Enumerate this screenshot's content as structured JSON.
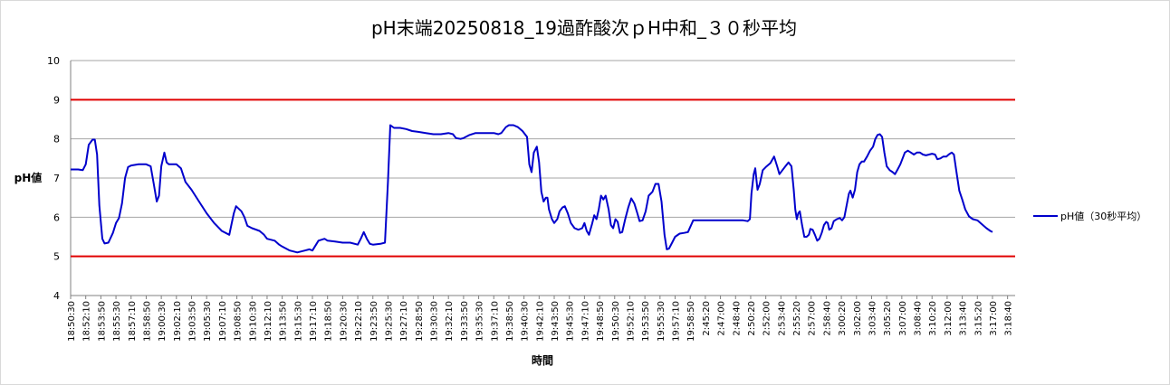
{
  "chart_data": {
    "type": "line",
    "title": "pH末端20250818_19過酢酸次ｐH中和_３０秒平均",
    "xlabel": "時間",
    "ylabel": "pH値",
    "ylim": [
      4,
      10
    ],
    "yticks": [
      4,
      5,
      6,
      7,
      8,
      9,
      10
    ],
    "grid": true,
    "legend_position": "right",
    "threshold_lines": [
      {
        "value": 9,
        "color": "#e00000"
      },
      {
        "value": 5,
        "color": "#e00000"
      }
    ],
    "categories": [
      "18:50:30",
      "18:52:10",
      "18:53:50",
      "18:55:30",
      "18:57:10",
      "18:58:50",
      "19:00:30",
      "19:02:10",
      "19:03:50",
      "19:05:30",
      "19:07:10",
      "19:08:50",
      "19:10:30",
      "19:12:10",
      "19:13:50",
      "19:15:30",
      "19:17:10",
      "19:18:50",
      "19:20:30",
      "19:22:10",
      "19:23:50",
      "19:25:30",
      "19:27:10",
      "19:28:50",
      "19:30:30",
      "19:32:10",
      "19:33:50",
      "19:35:30",
      "19:37:10",
      "19:38:50",
      "19:40:30",
      "19:42:10",
      "19:43:50",
      "19:45:30",
      "19:47:10",
      "19:48:50",
      "19:50:30",
      "19:52:10",
      "19:53:50",
      "19:55:30",
      "19:57:10",
      "19:58:50",
      "2:45:20",
      "2:47:00",
      "2:48:40",
      "2:50:20",
      "2:52:00",
      "2:53:40",
      "2:55:20",
      "2:57:00",
      "2:58:40",
      "3:00:20",
      "3:02:00",
      "3:03:40",
      "3:05:20",
      "3:07:00",
      "3:08:40",
      "3:10:20",
      "3:12:00",
      "3:13:40",
      "3:15:20",
      "3:17:00",
      "3:18:40"
    ],
    "series": [
      {
        "name": "pH値（30秒平均）",
        "color": "#0000cc",
        "points": [
          [
            0,
            7.22
          ],
          [
            0.5,
            7.22
          ],
          [
            0.8,
            7.2
          ],
          [
            1.0,
            7.35
          ],
          [
            1.2,
            7.85
          ],
          [
            1.45,
            7.98
          ],
          [
            1.6,
            7.98
          ],
          [
            1.75,
            7.6
          ],
          [
            1.9,
            6.3
          ],
          [
            2.1,
            5.45
          ],
          [
            2.25,
            5.33
          ],
          [
            2.5,
            5.35
          ],
          [
            2.8,
            5.6
          ],
          [
            3.0,
            5.85
          ],
          [
            3.2,
            5.98
          ],
          [
            3.4,
            6.35
          ],
          [
            3.6,
            7.0
          ],
          [
            3.8,
            7.28
          ],
          [
            4.0,
            7.32
          ],
          [
            4.5,
            7.35
          ],
          [
            5.0,
            7.35
          ],
          [
            5.3,
            7.3
          ],
          [
            5.5,
            6.85
          ],
          [
            5.7,
            6.4
          ],
          [
            5.85,
            6.55
          ],
          [
            6.0,
            7.3
          ],
          [
            6.2,
            7.65
          ],
          [
            6.35,
            7.4
          ],
          [
            6.5,
            7.35
          ],
          [
            7.0,
            7.35
          ],
          [
            7.3,
            7.25
          ],
          [
            7.6,
            6.9
          ],
          [
            8.0,
            6.7
          ],
          [
            8.5,
            6.4
          ],
          [
            9.0,
            6.1
          ],
          [
            9.5,
            5.85
          ],
          [
            10.0,
            5.65
          ],
          [
            10.5,
            5.55
          ],
          [
            10.8,
            6.1
          ],
          [
            10.95,
            6.28
          ],
          [
            11.3,
            6.15
          ],
          [
            11.5,
            6.0
          ],
          [
            11.7,
            5.78
          ],
          [
            12.0,
            5.72
          ],
          [
            12.5,
            5.65
          ],
          [
            12.8,
            5.55
          ],
          [
            13.0,
            5.45
          ],
          [
            13.5,
            5.4
          ],
          [
            13.8,
            5.3
          ],
          [
            14.0,
            5.25
          ],
          [
            14.5,
            5.15
          ],
          [
            15.0,
            5.1
          ],
          [
            15.5,
            5.15
          ],
          [
            15.8,
            5.18
          ],
          [
            16.0,
            5.15
          ],
          [
            16.4,
            5.4
          ],
          [
            16.8,
            5.45
          ],
          [
            17.0,
            5.4
          ],
          [
            17.5,
            5.38
          ],
          [
            18.0,
            5.35
          ],
          [
            18.5,
            5.35
          ],
          [
            19.0,
            5.3
          ],
          [
            19.2,
            5.45
          ],
          [
            19.4,
            5.62
          ],
          [
            19.6,
            5.45
          ],
          [
            19.8,
            5.32
          ],
          [
            20.0,
            5.3
          ],
          [
            20.5,
            5.32
          ],
          [
            20.8,
            5.35
          ],
          [
            21.0,
            6.9
          ],
          [
            21.15,
            8.35
          ],
          [
            21.4,
            8.28
          ],
          [
            21.8,
            8.28
          ],
          [
            22.2,
            8.25
          ],
          [
            22.6,
            8.2
          ],
          [
            23.0,
            8.18
          ],
          [
            23.5,
            8.15
          ],
          [
            24.0,
            8.12
          ],
          [
            24.5,
            8.12
          ],
          [
            25.0,
            8.15
          ],
          [
            25.3,
            8.12
          ],
          [
            25.5,
            8.02
          ],
          [
            25.8,
            8.0
          ],
          [
            26.0,
            8.02
          ],
          [
            26.4,
            8.1
          ],
          [
            26.8,
            8.15
          ],
          [
            27.5,
            8.15
          ],
          [
            28.0,
            8.15
          ],
          [
            28.3,
            8.12
          ],
          [
            28.5,
            8.15
          ],
          [
            28.8,
            8.3
          ],
          [
            29.0,
            8.35
          ],
          [
            29.3,
            8.35
          ],
          [
            29.6,
            8.3
          ],
          [
            29.9,
            8.2
          ],
          [
            30.2,
            8.05
          ],
          [
            30.35,
            7.35
          ],
          [
            30.5,
            7.15
          ],
          [
            30.65,
            7.65
          ],
          [
            30.85,
            7.8
          ],
          [
            31.0,
            7.4
          ],
          [
            31.15,
            6.65
          ],
          [
            31.3,
            6.4
          ],
          [
            31.45,
            6.5
          ],
          [
            31.55,
            6.5
          ],
          [
            31.65,
            6.2
          ],
          [
            31.85,
            5.95
          ],
          [
            32.0,
            5.85
          ],
          [
            32.2,
            5.95
          ],
          [
            32.35,
            6.15
          ],
          [
            32.55,
            6.25
          ],
          [
            32.7,
            6.28
          ],
          [
            32.9,
            6.1
          ],
          [
            33.1,
            5.85
          ],
          [
            33.35,
            5.72
          ],
          [
            33.6,
            5.68
          ],
          [
            33.85,
            5.72
          ],
          [
            34.0,
            5.85
          ],
          [
            34.15,
            5.65
          ],
          [
            34.3,
            5.55
          ],
          [
            34.5,
            5.82
          ],
          [
            34.65,
            6.05
          ],
          [
            34.8,
            5.95
          ],
          [
            34.95,
            6.2
          ],
          [
            35.1,
            6.55
          ],
          [
            35.25,
            6.45
          ],
          [
            35.4,
            6.55
          ],
          [
            35.6,
            6.2
          ],
          [
            35.75,
            5.8
          ],
          [
            35.9,
            5.72
          ],
          [
            36.05,
            5.95
          ],
          [
            36.2,
            5.88
          ],
          [
            36.35,
            5.6
          ],
          [
            36.5,
            5.62
          ],
          [
            36.7,
            5.95
          ],
          [
            36.9,
            6.25
          ],
          [
            37.1,
            6.48
          ],
          [
            37.3,
            6.35
          ],
          [
            37.5,
            6.1
          ],
          [
            37.65,
            5.9
          ],
          [
            37.85,
            5.92
          ],
          [
            38.05,
            6.15
          ],
          [
            38.25,
            6.55
          ],
          [
            38.5,
            6.65
          ],
          [
            38.7,
            6.85
          ],
          [
            38.9,
            6.85
          ],
          [
            39.1,
            6.4
          ],
          [
            39.3,
            5.55
          ],
          [
            39.45,
            5.18
          ],
          [
            39.6,
            5.2
          ],
          [
            39.8,
            5.35
          ],
          [
            40.0,
            5.5
          ],
          [
            40.3,
            5.58
          ],
          [
            40.6,
            5.6
          ],
          [
            40.85,
            5.62
          ],
          [
            41.0,
            5.75
          ],
          [
            41.2,
            5.92
          ],
          [
            41.5,
            5.92
          ],
          [
            42.0,
            5.92
          ],
          [
            42.5,
            5.92
          ],
          [
            43.0,
            5.92
          ],
          [
            43.5,
            5.92
          ],
          [
            44.0,
            5.92
          ],
          [
            44.5,
            5.92
          ],
          [
            44.8,
            5.9
          ],
          [
            44.95,
            5.95
          ],
          [
            45.05,
            6.6
          ],
          [
            45.2,
            7.1
          ],
          [
            45.3,
            7.25
          ],
          [
            45.45,
            6.7
          ],
          [
            45.6,
            6.85
          ],
          [
            45.8,
            7.2
          ],
          [
            46.0,
            7.28
          ],
          [
            46.3,
            7.38
          ],
          [
            46.55,
            7.55
          ],
          [
            46.75,
            7.3
          ],
          [
            46.9,
            7.1
          ],
          [
            47.1,
            7.2
          ],
          [
            47.3,
            7.3
          ],
          [
            47.5,
            7.4
          ],
          [
            47.7,
            7.3
          ],
          [
            47.85,
            6.7
          ],
          [
            47.95,
            6.2
          ],
          [
            48.05,
            5.95
          ],
          [
            48.15,
            6.1
          ],
          [
            48.25,
            6.15
          ],
          [
            48.4,
            5.8
          ],
          [
            48.55,
            5.5
          ],
          [
            48.7,
            5.5
          ],
          [
            48.85,
            5.55
          ],
          [
            48.95,
            5.7
          ],
          [
            49.1,
            5.68
          ],
          [
            49.25,
            5.55
          ],
          [
            49.4,
            5.4
          ],
          [
            49.55,
            5.45
          ],
          [
            49.7,
            5.6
          ],
          [
            49.85,
            5.8
          ],
          [
            50.0,
            5.88
          ],
          [
            50.1,
            5.85
          ],
          [
            50.2,
            5.68
          ],
          [
            50.35,
            5.72
          ],
          [
            50.5,
            5.9
          ],
          [
            50.7,
            5.95
          ],
          [
            50.9,
            5.98
          ],
          [
            51.05,
            5.92
          ],
          [
            51.2,
            6.0
          ],
          [
            51.35,
            6.3
          ],
          [
            51.5,
            6.6
          ],
          [
            51.6,
            6.68
          ],
          [
            51.75,
            6.5
          ],
          [
            51.9,
            6.7
          ],
          [
            52.05,
            7.15
          ],
          [
            52.2,
            7.35
          ],
          [
            52.35,
            7.42
          ],
          [
            52.5,
            7.42
          ],
          [
            52.7,
            7.55
          ],
          [
            52.9,
            7.7
          ],
          [
            53.1,
            7.8
          ],
          [
            53.25,
            8.0
          ],
          [
            53.4,
            8.1
          ],
          [
            53.55,
            8.12
          ],
          [
            53.7,
            8.05
          ],
          [
            53.85,
            7.65
          ],
          [
            54.0,
            7.3
          ],
          [
            54.2,
            7.2
          ],
          [
            54.4,
            7.15
          ],
          [
            54.55,
            7.1
          ],
          [
            54.7,
            7.2
          ],
          [
            54.9,
            7.35
          ],
          [
            55.05,
            7.5
          ],
          [
            55.2,
            7.65
          ],
          [
            55.4,
            7.7
          ],
          [
            55.6,
            7.65
          ],
          [
            55.8,
            7.6
          ],
          [
            56.0,
            7.65
          ],
          [
            56.2,
            7.65
          ],
          [
            56.4,
            7.6
          ],
          [
            56.6,
            7.58
          ],
          [
            56.8,
            7.6
          ],
          [
            57.0,
            7.62
          ],
          [
            57.2,
            7.6
          ],
          [
            57.35,
            7.48
          ],
          [
            57.55,
            7.5
          ],
          [
            57.75,
            7.55
          ],
          [
            57.95,
            7.55
          ],
          [
            58.1,
            7.6
          ],
          [
            58.3,
            7.65
          ],
          [
            58.45,
            7.6
          ],
          [
            58.6,
            7.2
          ],
          [
            58.8,
            6.68
          ],
          [
            59.0,
            6.45
          ],
          [
            59.2,
            6.2
          ],
          [
            59.45,
            6.02
          ],
          [
            59.7,
            5.95
          ],
          [
            60.0,
            5.92
          ],
          [
            60.3,
            5.82
          ],
          [
            60.6,
            5.72
          ],
          [
            60.85,
            5.65
          ],
          [
            61.0,
            5.62
          ]
        ]
      }
    ]
  }
}
